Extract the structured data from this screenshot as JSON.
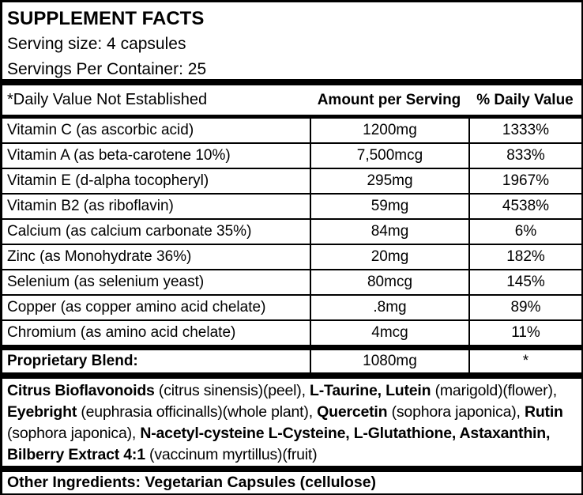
{
  "header": {
    "title": "SUPPLEMENT FACTS",
    "serving_size": "Serving size: 4 capsules",
    "servings_per_container": "Servings Per Container: 25"
  },
  "table": {
    "columns": [
      "*Daily Value Not Established",
      "Amount per Serving",
      "% Daily Value"
    ],
    "rows": [
      {
        "name": "Vitamin C (as ascorbic acid)",
        "amount": "1200mg",
        "daily_value": "1333%"
      },
      {
        "name": "Vitamin A (as beta-carotene 10%)",
        "amount": "7,500mcg",
        "daily_value": "833%"
      },
      {
        "name": "Vitamin E (d-alpha tocopheryl)",
        "amount": "295mg",
        "daily_value": "1967%"
      },
      {
        "name": "Vitamin B2 (as riboflavin)",
        "amount": "59mg",
        "daily_value": "4538%"
      },
      {
        "name": "Calcium (as calcium carbonate 35%)",
        "amount": "84mg",
        "daily_value": "6%"
      },
      {
        "name": "Zinc (as Monohydrate 36%)",
        "amount": "20mg",
        "daily_value": "182%"
      },
      {
        "name": "Selenium (as selenium yeast)",
        "amount": "80mcg",
        "daily_value": "145%"
      },
      {
        "name": "Copper (as copper amino acid chelate)",
        "amount": ".8mg",
        "daily_value": "89%"
      },
      {
        "name": "Chromium (as amino acid chelate)",
        "amount": "4mcg",
        "daily_value": "11%"
      }
    ],
    "proprietary_blend": {
      "name": "Proprietary Blend:",
      "amount": "1080mg",
      "daily_value": "*"
    }
  },
  "blend_ingredients": {
    "segments": [
      {
        "text": "Citrus Bioflavonoids",
        "bold": true
      },
      {
        "text": " (citrus sinensis)(peel), ",
        "bold": false
      },
      {
        "text": "L-Taurine, Lutein",
        "bold": true
      },
      {
        "text": " (marigold)(flower), ",
        "bold": false
      },
      {
        "text": "Eyebright",
        "bold": true
      },
      {
        "text": " (euphrasia officinalls)(whole plant), ",
        "bold": false
      },
      {
        "text": "Quercetin",
        "bold": true
      },
      {
        "text": " (sophora japonica), ",
        "bold": false
      },
      {
        "text": "Rutin",
        "bold": true
      },
      {
        "text": " (sophora japonica), ",
        "bold": false
      },
      {
        "text": "N-acetyl-cysteine L-Cysteine, L-Glutathione, Astaxanthin, Bilberry Extract 4:1",
        "bold": true
      },
      {
        "text": " (vaccinum myrtillus)(fruit)",
        "bold": false
      }
    ]
  },
  "other_ingredients": "Other Ingredients: Vegetarian Capsules (cellulose)",
  "colors": {
    "border": "#000000",
    "text": "#000000",
    "background": "#ffffff"
  }
}
